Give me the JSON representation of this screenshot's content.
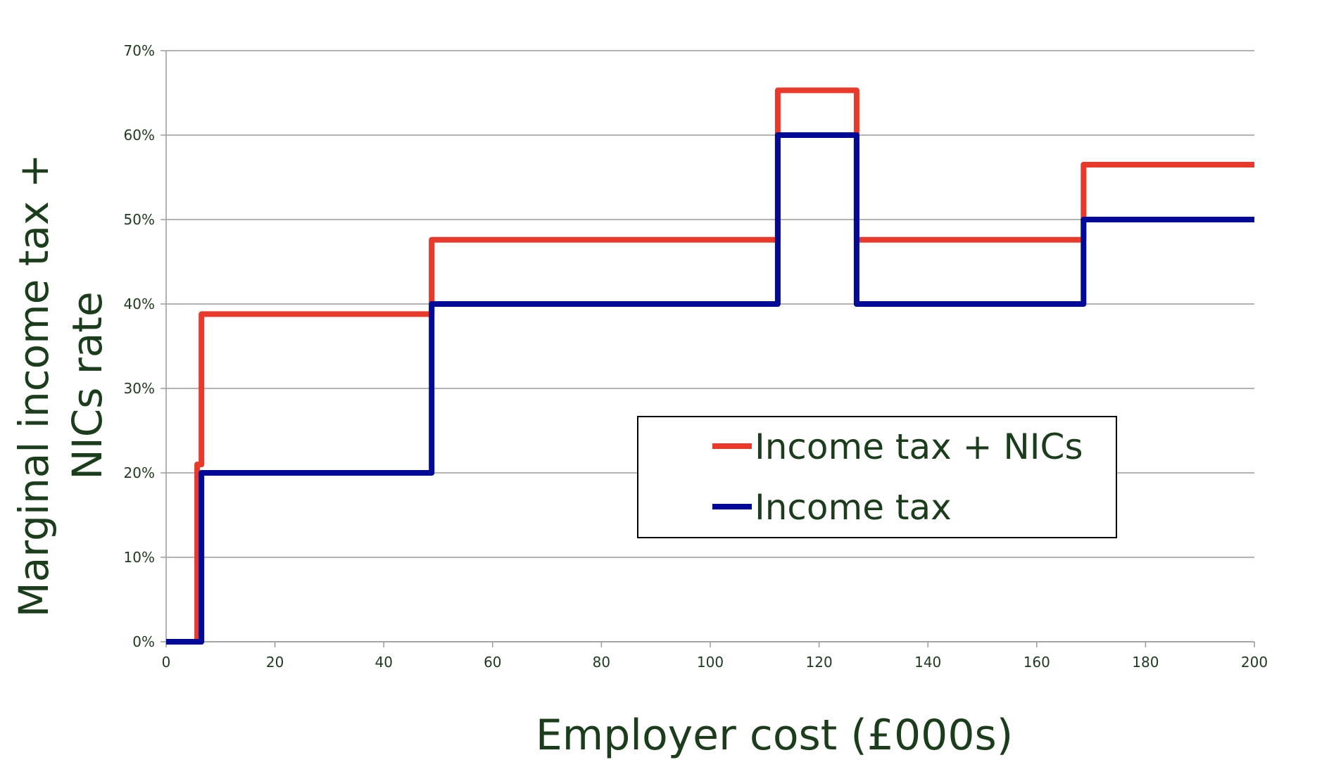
{
  "chart_data": {
    "type": "line",
    "title": "",
    "xlabel": "Employer cost (£000s)",
    "ylabel_lines": [
      "Marginal income tax +",
      "NICs rate"
    ],
    "xlim": [
      0,
      200
    ],
    "ylim": [
      0,
      70
    ],
    "x_ticks": [
      "0",
      "20",
      "40",
      "60",
      "80",
      "100",
      "120",
      "140",
      "160",
      "180",
      "200"
    ],
    "y_ticks": [
      "0%",
      "10%",
      "20%",
      "30%",
      "40%",
      "50%",
      "60%",
      "70%"
    ],
    "grid": true,
    "legend_position": "center-right",
    "series": [
      {
        "name": "Income tax + NICs",
        "color": "#e8392a",
        "step": true,
        "x": [
          0,
          5.7,
          5.7,
          6.5,
          6.5,
          48.8,
          48.8,
          112.4,
          112.4,
          126.9,
          126.9,
          168.6,
          168.6,
          200
        ],
        "y": [
          0,
          0,
          21,
          21,
          38.8,
          38.8,
          47.6,
          47.6,
          65.3,
          65.3,
          47.6,
          47.6,
          56.5,
          56.5
        ]
      },
      {
        "name": "Income tax",
        "color": "#000a96",
        "step": true,
        "x": [
          0,
          6.5,
          6.5,
          48.8,
          48.8,
          112.4,
          112.4,
          126.9,
          126.9,
          168.6,
          168.6,
          200
        ],
        "y": [
          0,
          0,
          20,
          20,
          40,
          40,
          60,
          60,
          40,
          40,
          50,
          50
        ]
      }
    ]
  }
}
